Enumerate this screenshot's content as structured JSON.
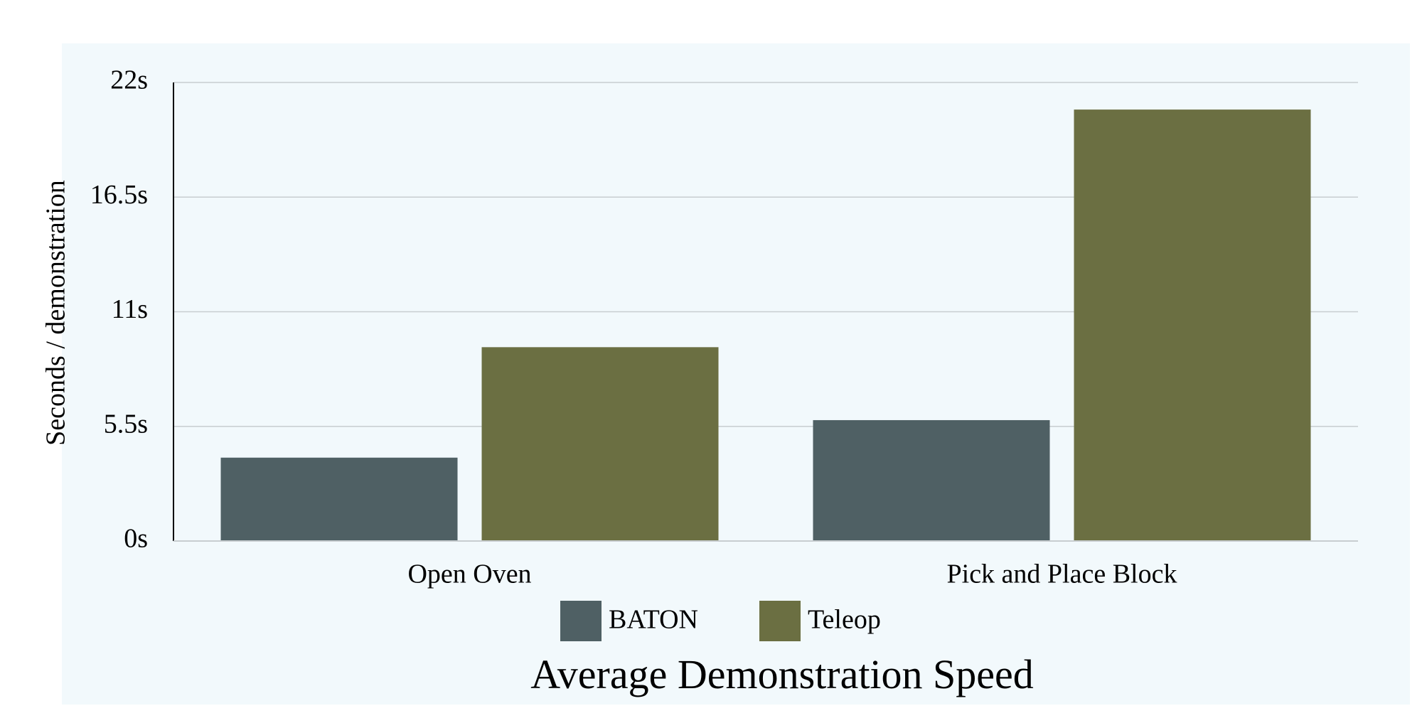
{
  "chart_data": {
    "type": "bar",
    "title": "Average Demonstration Speed",
    "xlabel": "",
    "ylabel": "Seconds / demonstration",
    "categories": [
      "Open Oven",
      "Pick and Place Block"
    ],
    "series": [
      {
        "name": "BATON",
        "values": [
          4.0,
          5.8
        ],
        "color": "#4f6064"
      },
      {
        "name": "Teleop",
        "values": [
          9.3,
          20.7
        ],
        "color": "#6b6f42"
      }
    ],
    "ylim": [
      0,
      22
    ],
    "yticks": [
      0,
      5.5,
      11,
      16.5,
      22
    ],
    "ytick_labels": [
      "0s",
      "5.5s",
      "11s",
      "16.5s",
      "22s"
    ],
    "grid": true,
    "legend_position": "bottom-center",
    "colors": {
      "background": "#f2f9fc",
      "gridline": "#c8cdd0",
      "axis": "#000000"
    }
  }
}
